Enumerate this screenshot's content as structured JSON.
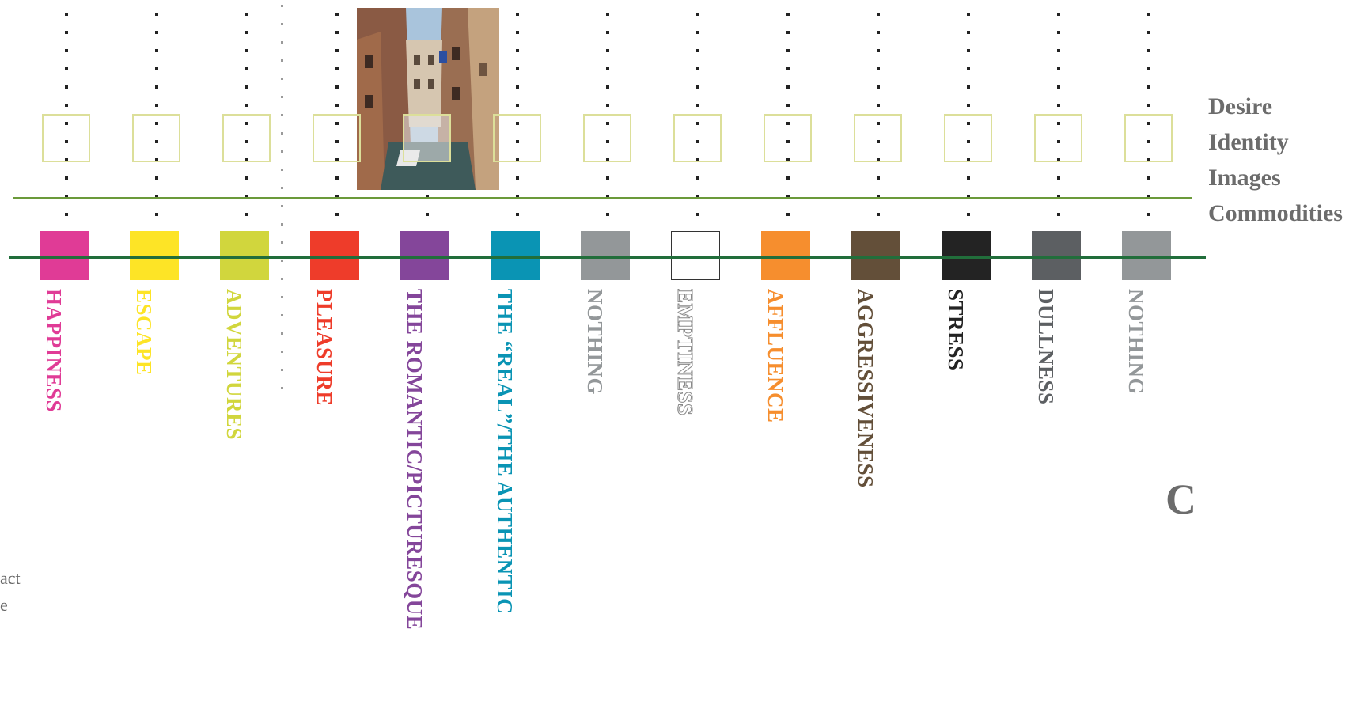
{
  "categories": [
    {
      "label": "HAPPINESS",
      "color": "#e03b96"
    },
    {
      "label": "ESCAPE",
      "color": "#fde426"
    },
    {
      "label": "ADVENTURES",
      "color": "#d1d63d"
    },
    {
      "label": "PLEASURE",
      "color": "#ee3c2a"
    },
    {
      "label": "THE ROMANTIC/PICTURESQUE",
      "color": "#84469a"
    },
    {
      "label": "THE “REAL”/THE AUTHENTIC",
      "color": "#0a94b4"
    },
    {
      "label": "NOTHING",
      "color": "#939799"
    },
    {
      "label": "EMPTINESS",
      "color": "#ffffff",
      "outlined": true
    },
    {
      "label": "AFFLUENCE",
      "color": "#f68e2e"
    },
    {
      "label": "AGGRESSIVENESS",
      "color": "#634f39"
    },
    {
      "label": "STRESS",
      "color": "#232323"
    },
    {
      "label": "DULLNESS",
      "color": "#5c5f62"
    },
    {
      "label": "NOTHING",
      "color": "#939799"
    }
  ],
  "legend_words": [
    "Desire",
    "Identity",
    "Images",
    "Commodities"
  ],
  "corner_letter": "C",
  "left_fragments": [
    "act",
    "e"
  ],
  "photo": {
    "subject": "venice-canal-photo"
  },
  "colors": {
    "upper_line": "#6b9a3a",
    "lower_line": "#216e3b",
    "square_outline": "#dcdf9a",
    "legend_text": "#6c6c6c"
  }
}
